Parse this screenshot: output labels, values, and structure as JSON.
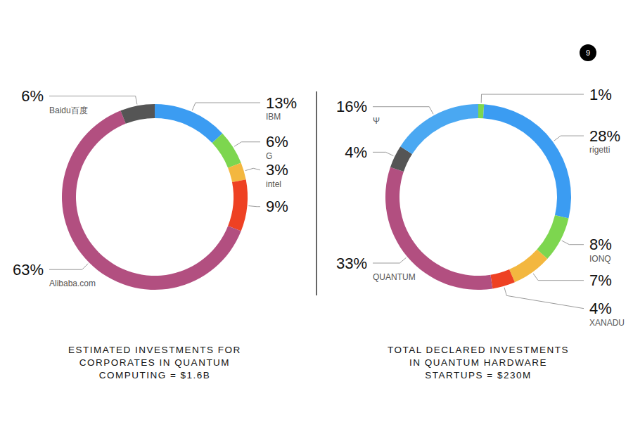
{
  "page": "9",
  "chart_data": [
    {
      "type": "pie",
      "title": "ESTIMATED INVESTMENTS FOR\nCORPORATES IN QUANTUM\nCOMPUTING = $1.6B",
      "categories": [
        "IBM",
        "G",
        "intel",
        null,
        "Alibaba.com",
        "Baidu百度"
      ],
      "values": [
        13,
        6,
        3,
        9,
        63,
        6
      ],
      "value_labels": [
        "13%",
        "6%",
        "3%",
        "9%",
        "63%",
        "6%"
      ],
      "colors": [
        "#3b9cf2",
        "#7dd64f",
        "#f3b73f",
        "#ee4123",
        "#b24f80",
        "#555555"
      ],
      "data_labels": true
    },
    {
      "type": "pie",
      "title": "TOTAL DECLARED INVESTMENTS\nIN QUANTUM HARDWARE\nSTARTUPS = $230M",
      "categories": [
        null,
        "rigetti",
        "IONQ",
        null,
        "XANADU",
        "QUANTUM",
        null,
        "Ψ"
      ],
      "values": [
        1,
        28,
        8,
        7,
        4,
        33,
        4,
        16
      ],
      "value_labels": [
        "1%",
        "28%",
        "8%",
        "7%",
        "4%",
        "33%",
        "4%",
        "16%"
      ],
      "colors": [
        "#7dd64f",
        "#3b9cf2",
        "#7dd64f",
        "#f3b73f",
        "#ee4123",
        "#b24f80",
        "#555555",
        "#4aa8f2"
      ],
      "data_labels": true
    }
  ]
}
